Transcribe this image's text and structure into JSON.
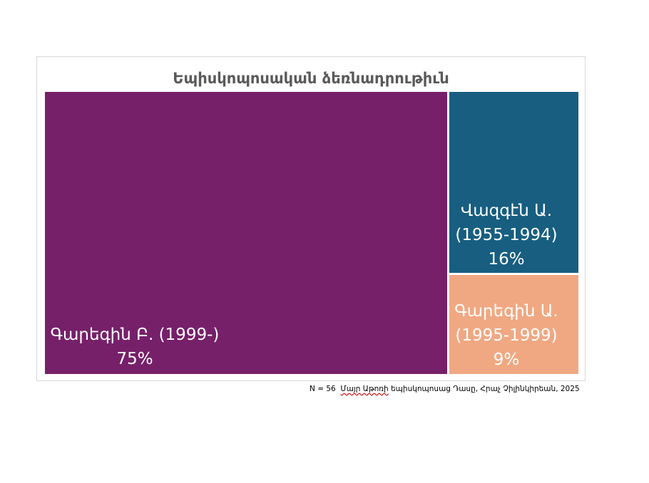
{
  "chart_data": {
    "type": "treemap",
    "title": "Եպիսկոպոսական ձեռնադրութիւն",
    "items": [
      {
        "name_line1": "Գարեգին Բ. (1999-)",
        "name_line2": "",
        "percent_label": "75%",
        "value": 75,
        "color": "#76206a"
      },
      {
        "name_line1": "Վազգէն Ա.",
        "name_line2": "(1955-1994)",
        "percent_label": "16%",
        "value": 16,
        "color": "#175e80"
      },
      {
        "name_line1": "Գարեգին Ա.",
        "name_line2": "(1995-1999)",
        "percent_label": "9%",
        "value": 9,
        "color": "#f0a882"
      }
    ]
  },
  "footnote": {
    "n_label": "N = 56",
    "source_underlined": "Մայր Աթոռի",
    "source_rest": "եպիսկոպոսաց Դասը, Հրաչ Չիլինկիրեան, 2025"
  }
}
